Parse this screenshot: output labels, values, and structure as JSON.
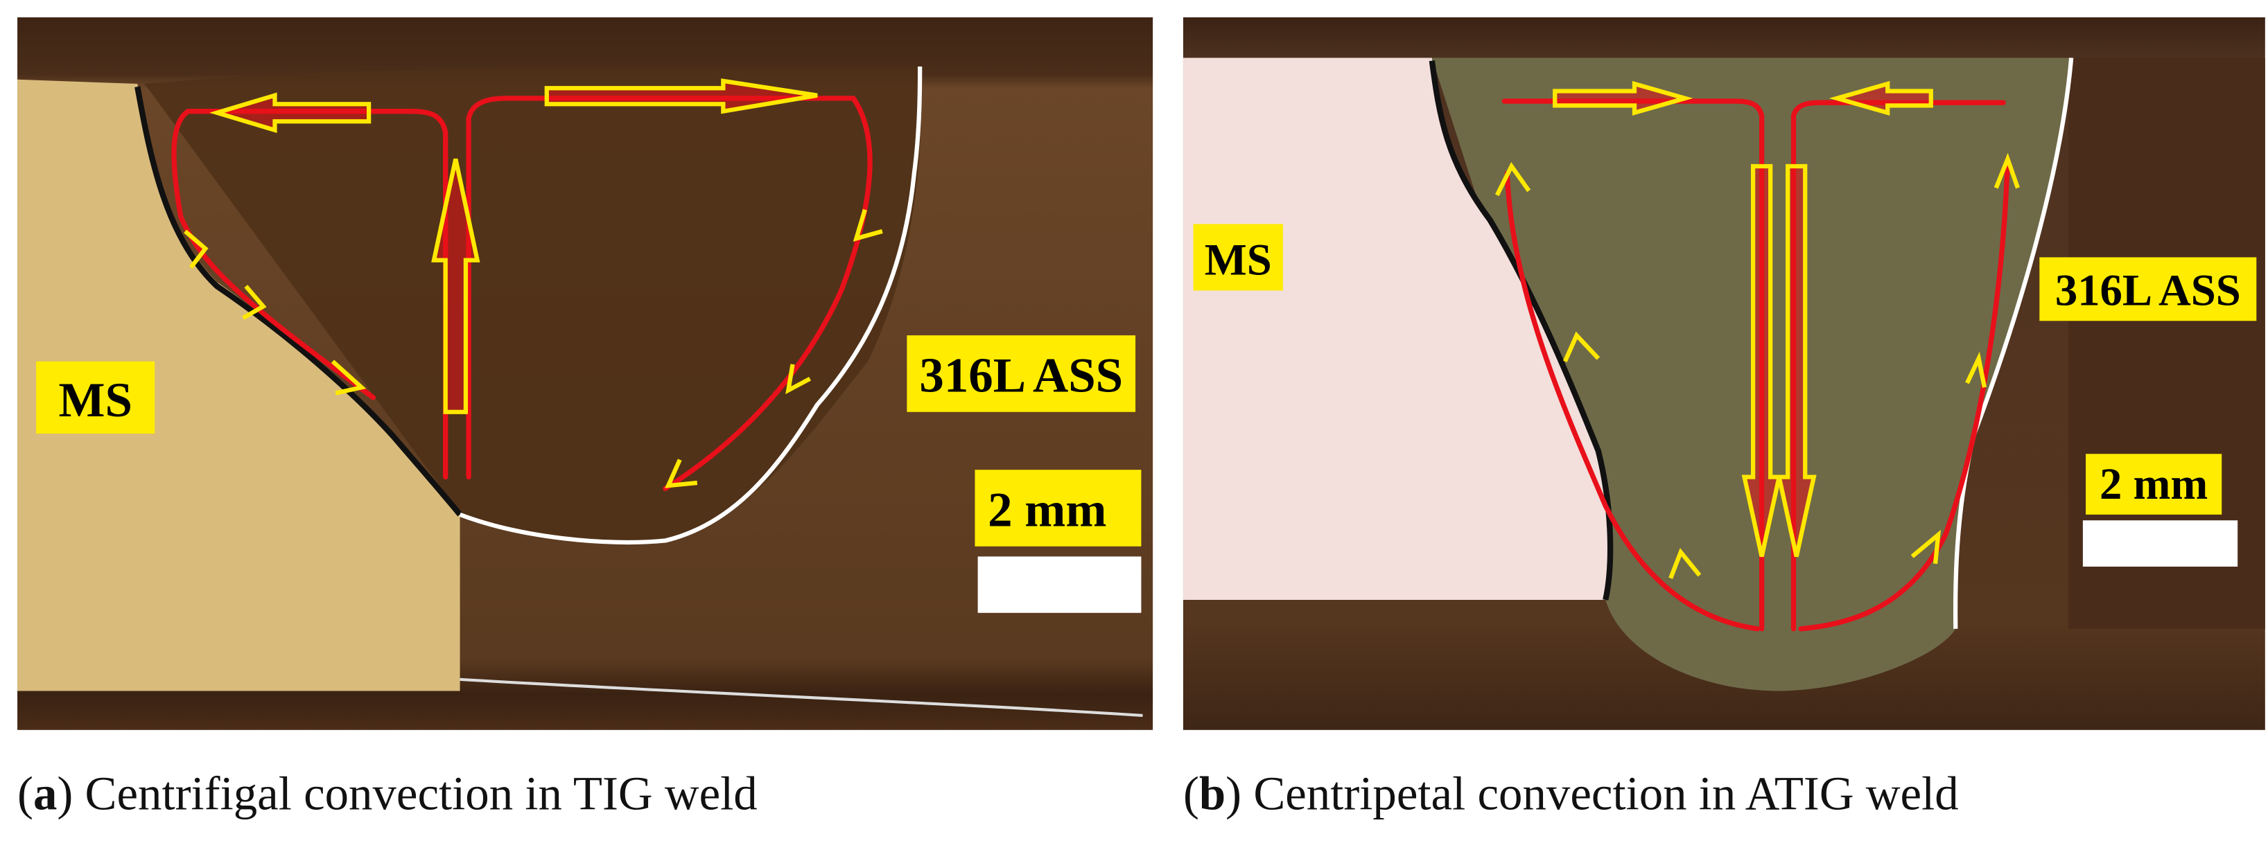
{
  "panels": [
    {
      "labels": {
        "base_metal": "MS",
        "weld_metal": "316L ASS",
        "scale_bar": "2 mm"
      },
      "caption": {
        "open": "(",
        "letter": "a",
        "rest": ") Centrifigal convection in TIG weld"
      }
    },
    {
      "labels": {
        "base_metal": "MS",
        "weld_metal": "316L ASS",
        "scale_bar": "2 mm"
      },
      "caption": {
        "open": "(",
        "letter": "b",
        "rest": ") Centripetal convection in ATIG weld"
      }
    }
  ]
}
